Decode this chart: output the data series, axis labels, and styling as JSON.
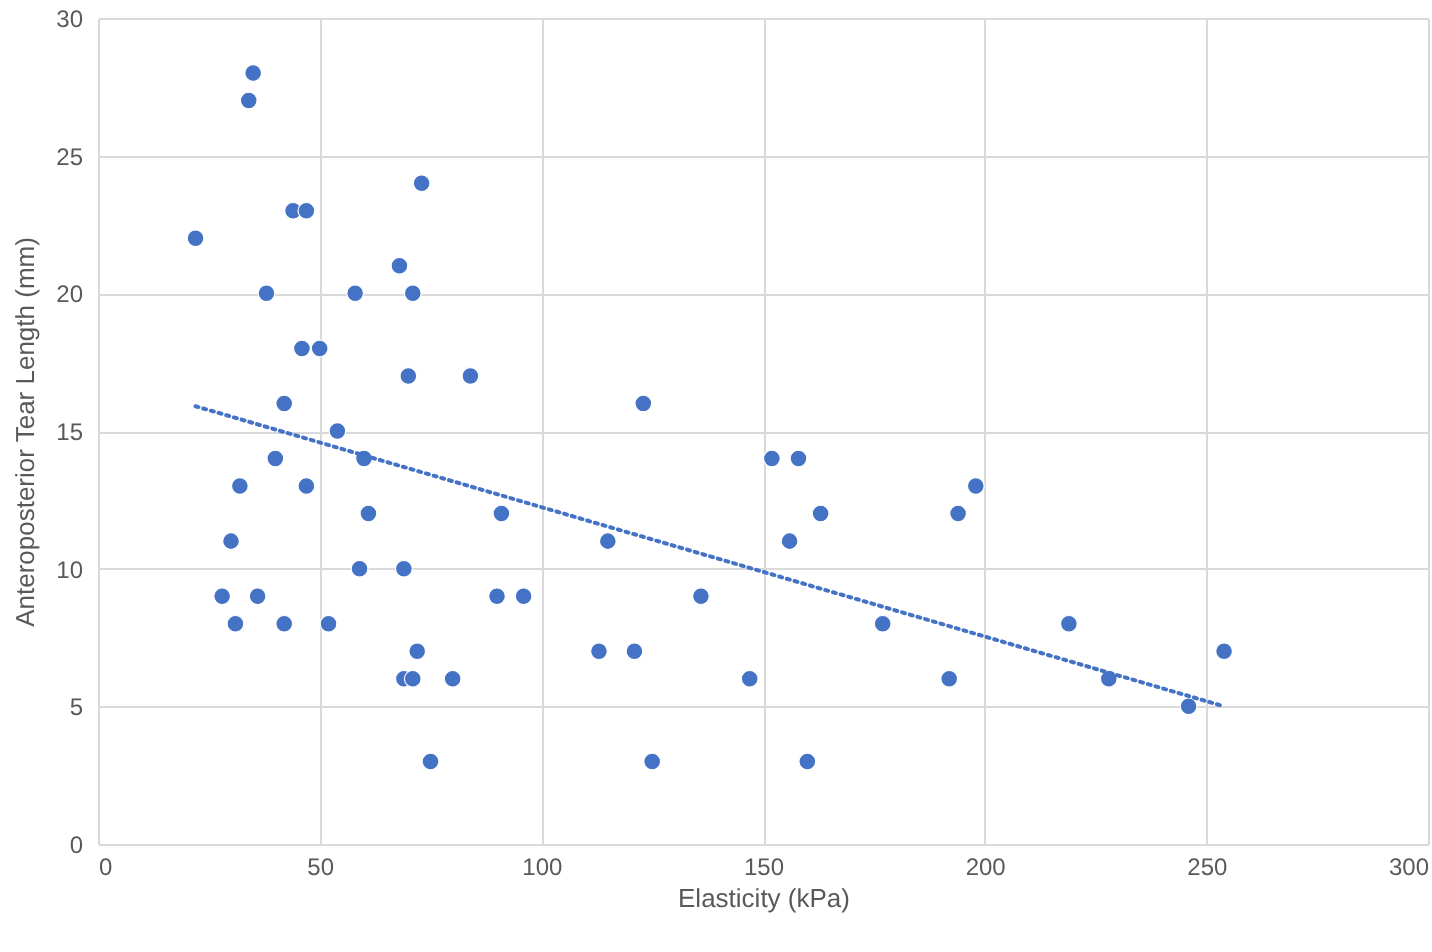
{
  "chart_data": {
    "type": "scatter",
    "xlabel": "Elasticity (kPa)",
    "ylabel": "Anteroposterior Tear Length (mm)",
    "xlim": [
      0,
      300
    ],
    "xticks": [
      0,
      50,
      100,
      150,
      200,
      250,
      300
    ],
    "ylim": [
      0,
      30
    ],
    "yticks": [
      0,
      5,
      10,
      15,
      20,
      25,
      30
    ],
    "grid": true,
    "series": [
      {
        "marker": "circle",
        "color": "#4472c4",
        "x": [
          22,
          34,
          35,
          38,
          44,
          47,
          73,
          68,
          58,
          71,
          46,
          50,
          70,
          84,
          42,
          54,
          123,
          60,
          40,
          152,
          158,
          32,
          47,
          198,
          61,
          91,
          163,
          194,
          30,
          115,
          156,
          28,
          36,
          59,
          69,
          90,
          96,
          136,
          31,
          42,
          52,
          177,
          219,
          72,
          113,
          121,
          254,
          69,
          71,
          80,
          147,
          192,
          228,
          246,
          75,
          125,
          160
        ],
        "values": [
          22,
          27,
          28,
          20,
          23,
          23,
          24,
          21,
          20,
          20,
          18,
          18,
          17,
          17,
          16,
          15,
          16,
          14,
          14,
          14,
          14,
          13,
          13,
          13,
          12,
          12,
          12,
          12,
          11,
          11,
          11,
          9,
          9,
          10,
          10,
          9,
          9,
          9,
          8,
          8,
          8,
          8,
          8,
          7,
          7,
          7,
          7,
          6,
          6,
          6,
          6,
          6,
          6,
          5,
          3,
          3,
          3
        ]
      },
      {
        "type": "line",
        "color": "#4472c4",
        "line_style": "dotted",
        "x": [
          22,
          254
        ],
        "values": [
          15.9,
          5.0
        ]
      }
    ]
  }
}
